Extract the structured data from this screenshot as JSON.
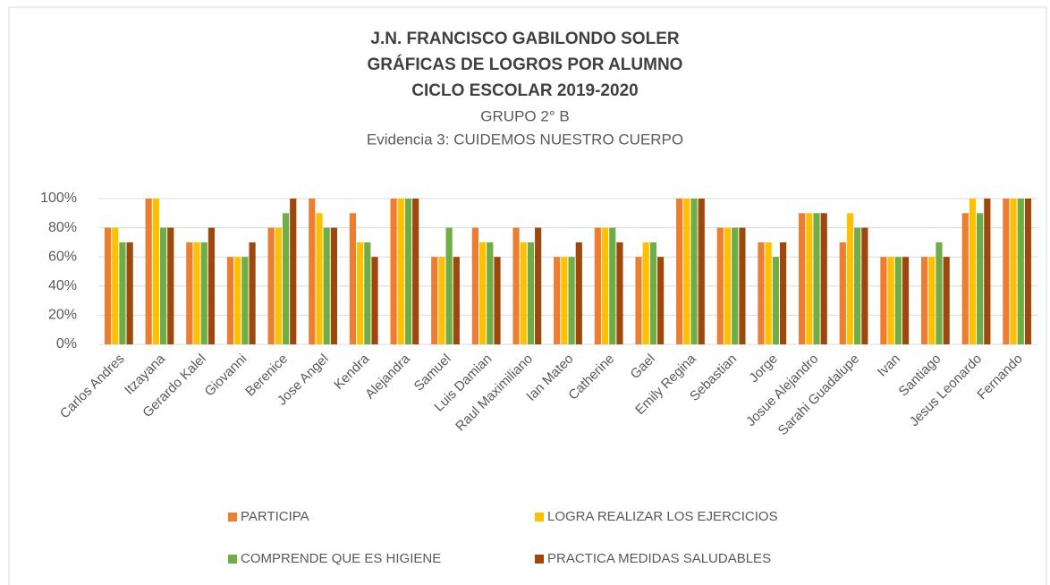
{
  "chart_data": {
    "type": "bar",
    "title": [
      "J.N. FRANCISCO GABILONDO SOLER",
      "GRÁFICAS DE LOGROS POR ALUMNO",
      "CICLO ESCOLAR 2019-2020"
    ],
    "subtitle": [
      "GRUPO 2° B",
      "Evidencia 3: CUIDEMOS NUESTRO CUERPO"
    ],
    "categories": [
      "Carlos Andres",
      "Itzayana",
      "Gerardo Kalel",
      "Giovanni",
      "Berenice",
      "Jose Angel",
      "Kendra",
      "Alejandra",
      "Samuel",
      "Luis Damian",
      "Raul Maximiliano",
      "Ian Mateo",
      "Catherine",
      "Gael",
      "Emily Regina",
      "Sebastian",
      "Jorge",
      "Josue Alejandro",
      "Sarahi Guadalupe",
      "Ivan",
      "Santiago",
      "Jesus Leonardo",
      "Fernando"
    ],
    "series": [
      {
        "name": "PARTICIPA",
        "color": "#ed7d31",
        "values": [
          80,
          100,
          70,
          60,
          80,
          100,
          90,
          100,
          60,
          80,
          80,
          60,
          80,
          60,
          100,
          80,
          70,
          90,
          70,
          60,
          60,
          90,
          100
        ]
      },
      {
        "name": "LOGRA REALIZAR LOS EJERCICIOS",
        "color": "#ffc000",
        "values": [
          80,
          100,
          70,
          60,
          80,
          90,
          70,
          100,
          60,
          70,
          70,
          60,
          80,
          70,
          100,
          80,
          70,
          90,
          90,
          60,
          60,
          100,
          100
        ]
      },
      {
        "name": "COMPRENDE QUE ES HIGIENE",
        "color": "#70ad47",
        "values": [
          70,
          80,
          70,
          60,
          90,
          80,
          70,
          100,
          80,
          70,
          70,
          60,
          80,
          70,
          100,
          80,
          60,
          90,
          80,
          60,
          70,
          90,
          100
        ]
      },
      {
        "name": "PRACTICA MEDIDAS SALUDABLES",
        "color": "#9e480e",
        "values": [
          70,
          80,
          80,
          70,
          100,
          80,
          60,
          100,
          60,
          60,
          80,
          70,
          70,
          60,
          100,
          80,
          70,
          90,
          80,
          60,
          60,
          100,
          100
        ]
      }
    ],
    "ylim": [
      0,
      100
    ],
    "yticks": [
      {
        "value": 0,
        "label": "0%"
      },
      {
        "value": 20,
        "label": "20%"
      },
      {
        "value": 40,
        "label": "40%"
      },
      {
        "value": 60,
        "label": "60%"
      },
      {
        "value": 80,
        "label": "80%"
      },
      {
        "value": 100,
        "label": "100%"
      }
    ],
    "grid": true
  }
}
